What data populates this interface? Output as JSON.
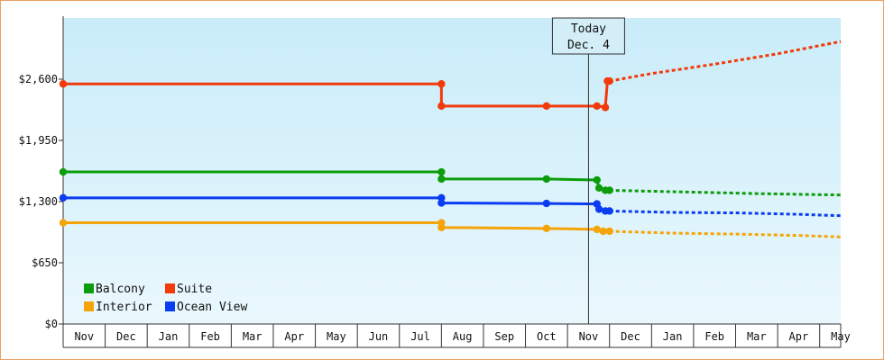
{
  "chart_data": {
    "type": "line",
    "ylim": [
      0,
      3250
    ],
    "yticks": [
      0,
      650,
      1300,
      1950,
      2600
    ],
    "ytick_labels": [
      "$0",
      "$650",
      "$1,300",
      "$1,950",
      "$2,600"
    ],
    "x_tick_labels": [
      "Nov",
      "Dec",
      "Jan",
      "Feb",
      "Mar",
      "Apr",
      "May",
      "Jun",
      "Jul",
      "Aug",
      "Sep",
      "Oct",
      "Nov",
      "Dec",
      "Jan",
      "Feb",
      "Mar",
      "Apr",
      "May"
    ],
    "xlim_months": [
      0,
      18.5
    ],
    "today_month": 12.5,
    "today_label": [
      "Today",
      "Dec. 4"
    ],
    "grid": false,
    "legend_position": "bottom-left",
    "series": [
      {
        "name": "Balcony",
        "color": "#0b9d0b",
        "x": [
          0,
          9,
          9,
          11.5,
          12.7,
          12.75,
          12.9,
          13
        ],
        "y": [
          1615,
          1615,
          1540,
          1540,
          1530,
          1445,
          1420,
          1420
        ],
        "forecast_x": [
          13,
          15,
          16.5,
          18.5
        ],
        "forecast_y": [
          1420,
          1400,
          1385,
          1370
        ]
      },
      {
        "name": "Suite",
        "color": "#f23a0a",
        "x": [
          0,
          9,
          9,
          11.5,
          12.7,
          12.75,
          12.9,
          12.95,
          13
        ],
        "y": [
          2550,
          2550,
          2315,
          2315,
          2315,
          2315,
          2300,
          2580,
          2580
        ],
        "forecast_x": [
          13,
          14,
          15.5,
          17,
          18.5
        ],
        "forecast_y": [
          2580,
          2660,
          2760,
          2870,
          3000
        ]
      },
      {
        "name": "Interior",
        "color": "#f5a40a",
        "x": [
          0,
          9,
          9,
          11.5,
          12.7,
          12.85,
          13
        ],
        "y": [
          1075,
          1075,
          1025,
          1015,
          1005,
          985,
          985
        ],
        "forecast_x": [
          13,
          14.5,
          16,
          17.5,
          18.5
        ],
        "forecast_y": [
          985,
          965,
          955,
          940,
          925
        ]
      },
      {
        "name": "Ocean View",
        "color": "#0a3cf2",
        "x": [
          0,
          9,
          9,
          11.5,
          12.7,
          12.75,
          12.9,
          13
        ],
        "y": [
          1340,
          1340,
          1285,
          1280,
          1275,
          1220,
          1200,
          1200
        ],
        "forecast_x": [
          13,
          14.5,
          16,
          17.5,
          18.5
        ],
        "forecast_y": [
          1200,
          1185,
          1180,
          1165,
          1150
        ]
      }
    ],
    "markers": [
      {
        "series": 0,
        "x": [
          0,
          9,
          9,
          11.5,
          12.7,
          12.75,
          12.9,
          13
        ],
        "y": [
          1615,
          1615,
          1540,
          1540,
          1530,
          1445,
          1420,
          1420
        ]
      },
      {
        "series": 1,
        "x": [
          0,
          9,
          9,
          11.5,
          12.7,
          12.9,
          12.95,
          13
        ],
        "y": [
          2550,
          2550,
          2315,
          2315,
          2315,
          2300,
          2580,
          2580
        ]
      },
      {
        "series": 2,
        "x": [
          0,
          9,
          9,
          11.5,
          12.7,
          12.85,
          13
        ],
        "y": [
          1075,
          1075,
          1025,
          1015,
          1005,
          985,
          985
        ]
      },
      {
        "series": 3,
        "x": [
          0,
          9,
          9,
          11.5,
          12.7,
          12.75,
          12.9,
          13
        ],
        "y": [
          1340,
          1340,
          1285,
          1280,
          1275,
          1220,
          1200,
          1200
        ]
      }
    ],
    "legend": [
      {
        "label": "Balcony",
        "color": "#0b9d0b"
      },
      {
        "label": "Suite",
        "color": "#f23a0a"
      },
      {
        "label": "Interior",
        "color": "#f5a40a"
      },
      {
        "label": "Ocean View",
        "color": "#0a3cf2"
      }
    ]
  }
}
